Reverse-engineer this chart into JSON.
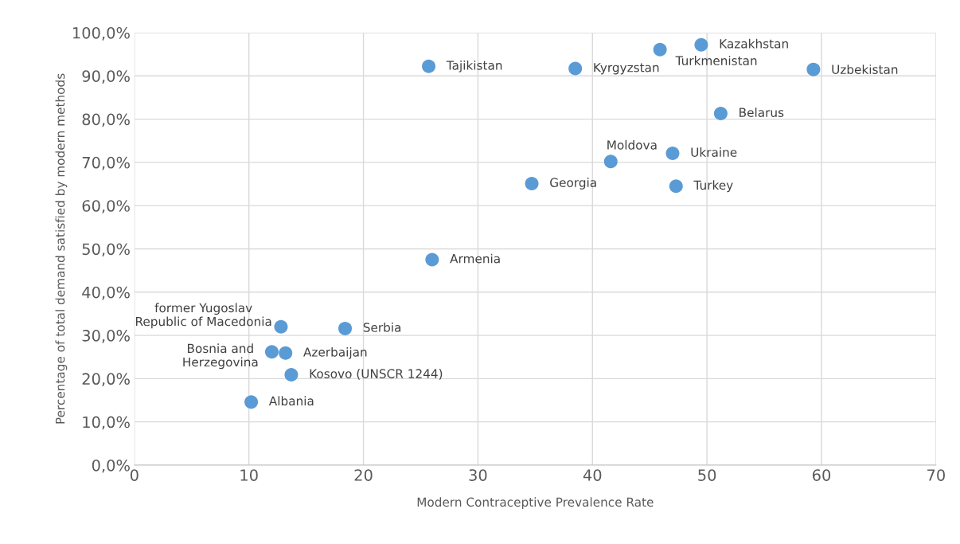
{
  "chart_data": {
    "type": "scatter",
    "xlabel": "Modern Contraceptive Prevalence Rate",
    "ylabel": "Percentage of total demand satisfied by modern methods",
    "x": [
      25.7,
      38.5,
      45.9,
      49.5,
      59.3,
      51.2,
      41.6,
      47.0,
      47.3,
      34.7,
      26.0,
      12.8,
      18.4,
      12.0,
      13.2,
      13.7,
      10.2
    ],
    "series": [
      {
        "color": "#5b9bd5",
        "values": [
          92.2,
          91.7,
          96.1,
          97.2,
          91.5,
          81.3,
          70.2,
          72.1,
          64.5,
          65.1,
          47.5,
          32.0,
          31.6,
          26.2,
          25.9,
          20.9,
          14.6
        ]
      }
    ],
    "annotations": [
      {
        "text": "Tajikistan",
        "x": 25.7,
        "y": 92.2
      },
      {
        "text": "Kyrgyzstan",
        "x": 38.5,
        "y": 91.7
      },
      {
        "text": "Turkmenistan",
        "x": 45.9,
        "y": 96.1
      },
      {
        "text": "Kazakhstan",
        "x": 49.5,
        "y": 97.2
      },
      {
        "text": "Uzbekistan",
        "x": 59.3,
        "y": 91.5
      },
      {
        "text": "Belarus",
        "x": 51.2,
        "y": 81.3
      },
      {
        "text": "Moldova",
        "x": 41.6,
        "y": 70.2
      },
      {
        "text": "Ukraine",
        "x": 47.0,
        "y": 72.1
      },
      {
        "text": "Turkey",
        "x": 47.3,
        "y": 64.5
      },
      {
        "text": "Georgia",
        "x": 34.7,
        "y": 65.1
      },
      {
        "text": "Armenia",
        "x": 26.0,
        "y": 47.5
      },
      {
        "text": "former Yugoslav\nRepublic of Macedonia",
        "x": 12.8,
        "y": 32.0
      },
      {
        "text": "Serbia",
        "x": 18.4,
        "y": 31.6
      },
      {
        "text": "Bosnia and\nHerzegovina",
        "x": 12.0,
        "y": 26.2
      },
      {
        "text": "Azerbaijan",
        "x": 13.2,
        "y": 25.9
      },
      {
        "text": "Kosovo (UNSCR 1244)",
        "x": 13.7,
        "y": 20.9
      },
      {
        "text": "Albania",
        "x": 10.2,
        "y": 14.6
      }
    ],
    "xlim": [
      0,
      70
    ],
    "xticks": [
      0,
      10,
      20,
      30,
      40,
      50,
      60,
      70
    ],
    "ylim": [
      0,
      100
    ],
    "yticks": [
      {
        "value": 0,
        "label": "0,0%"
      },
      {
        "value": 10,
        "label": "10,0%"
      },
      {
        "value": 20,
        "label": "20,0%"
      },
      {
        "value": 30,
        "label": "30,0%"
      },
      {
        "value": 40,
        "label": "40,0%"
      },
      {
        "value": 50,
        "label": "50,0%"
      },
      {
        "value": 60,
        "label": "60,0%"
      },
      {
        "value": 70,
        "label": "70,0%"
      },
      {
        "value": 80,
        "label": "80,0%"
      },
      {
        "value": 90,
        "label": "90,0%"
      },
      {
        "value": 100,
        "label": "100,0%"
      }
    ],
    "grid": true,
    "marker": "circle"
  }
}
